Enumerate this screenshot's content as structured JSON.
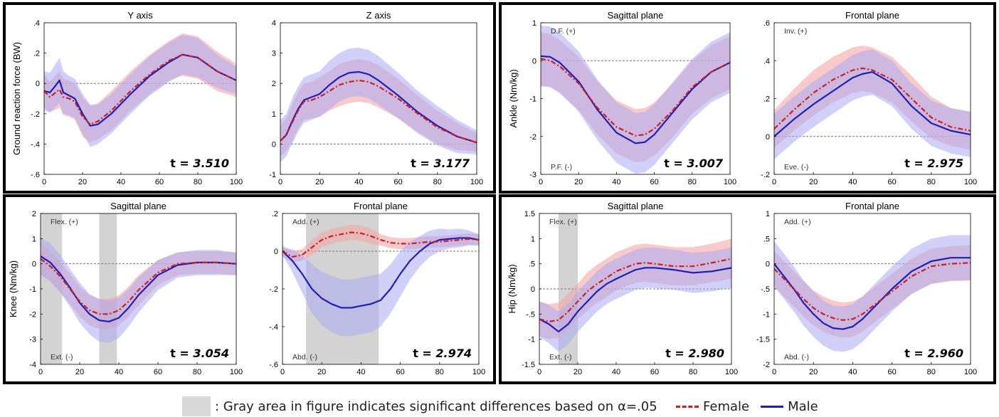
{
  "colors": {
    "female": "#cc1f1f",
    "male": "#1f1fb4",
    "female_band": "#f4a6a6",
    "male_band": "#aaaaf4",
    "sig_area": "#d3d3d3",
    "frame": "#000000"
  },
  "legend": {
    "sig_text": ": Gray area in figure indicates significant differences based on",
    "alpha_text": "α=.05",
    "female_label": "Female",
    "male_label": "Male"
  },
  "chart_data": [
    {
      "type": "line",
      "title": "Y axis",
      "ylabel": "Ground reaction force (BW)",
      "xlim": [
        0,
        100
      ],
      "ylim": [
        -0.6,
        0.4
      ],
      "xticks": [
        0,
        20,
        40,
        60,
        80,
        100
      ],
      "yticks": [
        -0.6,
        -0.4,
        -0.2,
        0,
        0.2,
        0.4
      ],
      "t_label": "t = ",
      "t_value": "3.510",
      "annotations": [],
      "significant_ranges": [],
      "x": [
        0,
        3,
        5,
        8,
        10,
        13,
        16,
        20,
        24,
        28,
        35,
        45,
        55,
        65,
        72,
        80,
        90,
        100
      ],
      "series": [
        {
          "name": "Female",
          "values": [
            -0.05,
            -0.09,
            -0.07,
            -0.04,
            -0.09,
            -0.1,
            -0.12,
            -0.22,
            -0.27,
            -0.25,
            -0.18,
            -0.05,
            0.06,
            0.15,
            0.19,
            0.17,
            0.08,
            0.02
          ],
          "sd": [
            0.11,
            0.1,
            0.11,
            0.12,
            0.12,
            0.12,
            0.12,
            0.13,
            0.12,
            0.12,
            0.13,
            0.13,
            0.13,
            0.13,
            0.14,
            0.14,
            0.13,
            0.11
          ]
        },
        {
          "name": "Male",
          "values": [
            -0.05,
            -0.06,
            -0.03,
            0.02,
            -0.06,
            -0.08,
            -0.1,
            -0.2,
            -0.28,
            -0.27,
            -0.2,
            -0.07,
            0.05,
            0.14,
            0.19,
            0.17,
            0.08,
            0.02
          ],
          "sd": [
            0.13,
            0.13,
            0.14,
            0.15,
            0.14,
            0.13,
            0.13,
            0.13,
            0.14,
            0.13,
            0.13,
            0.13,
            0.13,
            0.13,
            0.13,
            0.13,
            0.11,
            0.09
          ]
        }
      ]
    },
    {
      "type": "line",
      "title": "Z axis",
      "ylabel": "",
      "xlim": [
        0,
        100
      ],
      "ylim": [
        -1,
        4
      ],
      "xticks": [
        0,
        20,
        40,
        60,
        80,
        100
      ],
      "yticks": [
        -1,
        0,
        1,
        2,
        3,
        4
      ],
      "t_label": "t = ",
      "t_value": "3.177",
      "annotations": [],
      "significant_ranges": [],
      "x": [
        0,
        3,
        6,
        9,
        12,
        16,
        20,
        25,
        30,
        35,
        40,
        45,
        50,
        60,
        70,
        80,
        90,
        100
      ],
      "series": [
        {
          "name": "Female",
          "values": [
            0.1,
            0.3,
            0.7,
            1.1,
            1.4,
            1.45,
            1.55,
            1.75,
            1.95,
            2.05,
            2.1,
            2.05,
            1.9,
            1.5,
            1.0,
            0.55,
            0.25,
            0.05
          ],
          "sd": [
            0.5,
            0.55,
            0.6,
            0.6,
            0.6,
            0.6,
            0.65,
            0.65,
            0.7,
            0.7,
            0.7,
            0.7,
            0.7,
            0.65,
            0.6,
            0.55,
            0.45,
            0.3
          ]
        },
        {
          "name": "Male",
          "values": [
            0.1,
            0.3,
            0.75,
            1.15,
            1.45,
            1.55,
            1.65,
            1.95,
            2.2,
            2.35,
            2.38,
            2.3,
            2.1,
            1.6,
            1.05,
            0.6,
            0.25,
            0.05
          ],
          "sd": [
            0.7,
            0.7,
            0.75,
            0.75,
            0.75,
            0.75,
            0.75,
            0.8,
            0.8,
            0.8,
            0.8,
            0.8,
            0.8,
            0.75,
            0.7,
            0.65,
            0.55,
            0.4
          ]
        }
      ]
    },
    {
      "type": "line",
      "title": "Sagittal plane",
      "ylabel": "Ankle (Nm/kg)",
      "xlim": [
        0,
        100
      ],
      "ylim": [
        -3,
        1
      ],
      "xticks": [
        0,
        20,
        40,
        60,
        80,
        100
      ],
      "yticks": [
        -3,
        -2,
        -1,
        0,
        1
      ],
      "t_label": "t = ",
      "t_value": "3.007",
      "annotations": [
        {
          "text": "D.F. (+)",
          "pos": "top"
        },
        {
          "text": "P.F. (-)",
          "pos": "bottom"
        }
      ],
      "significant_ranges": [],
      "x": [
        0,
        5,
        10,
        20,
        30,
        40,
        50,
        55,
        60,
        70,
        80,
        90,
        100
      ],
      "series": [
        {
          "name": "Female",
          "values": [
            0.05,
            0.0,
            -0.15,
            -0.6,
            -1.25,
            -1.75,
            -1.98,
            -1.95,
            -1.8,
            -1.3,
            -0.7,
            -0.3,
            -0.05
          ],
          "sd": [
            0.7,
            0.7,
            0.7,
            0.7,
            0.7,
            0.7,
            0.7,
            0.7,
            0.7,
            0.7,
            0.7,
            0.7,
            0.7
          ]
        },
        {
          "name": "Male",
          "values": [
            0.12,
            0.1,
            -0.05,
            -0.55,
            -1.3,
            -1.9,
            -2.18,
            -2.15,
            -1.95,
            -1.35,
            -0.75,
            -0.3,
            -0.05
          ],
          "sd": [
            0.8,
            0.8,
            0.8,
            0.8,
            0.8,
            0.8,
            0.8,
            0.8,
            0.8,
            0.8,
            0.8,
            0.8,
            0.8
          ]
        }
      ]
    },
    {
      "type": "line",
      "title": "Frontal plane",
      "ylabel": "",
      "xlim": [
        0,
        100
      ],
      "ylim": [
        -0.2,
        0.6
      ],
      "xticks": [
        0,
        20,
        40,
        60,
        80,
        100
      ],
      "yticks": [
        -0.2,
        0,
        0.2,
        0.4,
        0.6
      ],
      "t_label": "t = ",
      "t_value": "2.975",
      "annotations": [
        {
          "text": "Inv. (+)",
          "pos": "top"
        },
        {
          "text": "Eve. (-)",
          "pos": "bottom"
        }
      ],
      "significant_ranges": [],
      "x": [
        0,
        10,
        20,
        30,
        40,
        45,
        50,
        60,
        70,
        80,
        90,
        100
      ],
      "series": [
        {
          "name": "Female",
          "values": [
            0.04,
            0.14,
            0.23,
            0.3,
            0.35,
            0.36,
            0.35,
            0.3,
            0.2,
            0.1,
            0.05,
            0.03
          ],
          "sd": [
            0.1,
            0.11,
            0.12,
            0.12,
            0.12,
            0.12,
            0.12,
            0.12,
            0.12,
            0.11,
            0.1,
            0.1
          ]
        },
        {
          "name": "Male",
          "values": [
            0.0,
            0.09,
            0.17,
            0.24,
            0.31,
            0.33,
            0.34,
            0.28,
            0.16,
            0.07,
            0.03,
            0.01
          ],
          "sd": [
            0.12,
            0.12,
            0.12,
            0.12,
            0.12,
            0.12,
            0.12,
            0.12,
            0.12,
            0.12,
            0.12,
            0.12
          ]
        }
      ]
    },
    {
      "type": "line",
      "title": "Sagittal plane",
      "ylabel": "Knee (Nm/kg)",
      "xlim": [
        0,
        100
      ],
      "ylim": [
        -4,
        2
      ],
      "xticks": [
        0,
        20,
        40,
        60,
        80,
        100
      ],
      "yticks": [
        -4,
        -3,
        -2,
        -1,
        0,
        1,
        2
      ],
      "t_label": "t = ",
      "t_value": "3.054",
      "annotations": [
        {
          "text": "Flex. (+)",
          "pos": "top"
        },
        {
          "text": "Ext. (-)",
          "pos": "bottom"
        }
      ],
      "significant_ranges": [
        [
          0,
          11
        ],
        [
          30,
          39
        ]
      ],
      "x": [
        0,
        5,
        10,
        15,
        20,
        25,
        30,
        35,
        40,
        45,
        50,
        60,
        70,
        80,
        90,
        100
      ],
      "series": [
        {
          "name": "Female",
          "values": [
            0.2,
            -0.1,
            -0.5,
            -1.0,
            -1.5,
            -1.85,
            -2.0,
            -2.0,
            -1.85,
            -1.5,
            -1.05,
            -0.35,
            0.0,
            0.05,
            0.05,
            0.0
          ],
          "sd": [
            0.6,
            0.6,
            0.6,
            0.6,
            0.6,
            0.6,
            0.6,
            0.6,
            0.6,
            0.6,
            0.6,
            0.5,
            0.45,
            0.45,
            0.45,
            0.45
          ]
        },
        {
          "name": "Male",
          "values": [
            0.3,
            0.05,
            -0.4,
            -0.95,
            -1.55,
            -2.0,
            -2.25,
            -2.3,
            -2.15,
            -1.75,
            -1.25,
            -0.45,
            -0.05,
            0.05,
            0.05,
            0.0
          ],
          "sd": [
            0.75,
            0.75,
            0.75,
            0.75,
            0.8,
            0.8,
            0.85,
            0.85,
            0.8,
            0.75,
            0.7,
            0.6,
            0.5,
            0.5,
            0.5,
            0.45
          ]
        }
      ]
    },
    {
      "type": "line",
      "title": "Frontal plane",
      "ylabel": "",
      "xlim": [
        0,
        100
      ],
      "ylim": [
        -0.6,
        0.2
      ],
      "xticks": [
        0,
        20,
        40,
        60,
        80,
        100
      ],
      "yticks": [
        -0.6,
        -0.4,
        -0.2,
        0,
        0.2
      ],
      "t_label": "t = ",
      "t_value": "2.974",
      "annotations": [
        {
          "text": "Add. (+)",
          "pos": "top"
        },
        {
          "text": "Abd. (-)",
          "pos": "bottom"
        }
      ],
      "significant_ranges": [
        [
          12,
          49
        ]
      ],
      "x": [
        0,
        5,
        10,
        15,
        20,
        25,
        30,
        35,
        40,
        45,
        50,
        55,
        60,
        65,
        70,
        75,
        80,
        85,
        90,
        95,
        100
      ],
      "series": [
        {
          "name": "Female",
          "values": [
            0.0,
            -0.03,
            -0.02,
            0.02,
            0.06,
            0.08,
            0.09,
            0.1,
            0.095,
            0.08,
            0.06,
            0.045,
            0.04,
            0.04,
            0.045,
            0.05,
            0.05,
            0.055,
            0.06,
            0.065,
            0.06
          ],
          "sd": [
            0.03,
            0.03,
            0.03,
            0.04,
            0.04,
            0.04,
            0.04,
            0.04,
            0.04,
            0.04,
            0.03,
            0.03,
            0.03,
            0.03,
            0.03,
            0.03,
            0.03,
            0.03,
            0.03,
            0.03,
            0.03
          ]
        },
        {
          "name": "Male",
          "values": [
            0.0,
            -0.05,
            -0.12,
            -0.2,
            -0.25,
            -0.28,
            -0.3,
            -0.3,
            -0.29,
            -0.28,
            -0.26,
            -0.2,
            -0.12,
            -0.05,
            0.0,
            0.04,
            0.06,
            0.065,
            0.07,
            0.07,
            0.06
          ],
          "sd": [
            0.02,
            0.06,
            0.1,
            0.13,
            0.14,
            0.15,
            0.15,
            0.15,
            0.15,
            0.15,
            0.14,
            0.13,
            0.12,
            0.1,
            0.08,
            0.07,
            0.06,
            0.05,
            0.05,
            0.04,
            0.03
          ]
        }
      ]
    },
    {
      "type": "line",
      "title": "Sagittal plane",
      "ylabel": "Hip (Nm/kg)",
      "xlim": [
        0,
        100
      ],
      "ylim": [
        -1.5,
        1.5
      ],
      "xticks": [
        0,
        20,
        40,
        60,
        80,
        100
      ],
      "yticks": [
        -1.5,
        -1,
        -0.5,
        0,
        0.5,
        1,
        1.5
      ],
      "t_label": "t = ",
      "t_value": "2.980",
      "annotations": [
        {
          "text": "Flex. (+)",
          "pos": "top"
        },
        {
          "text": "Ext. (-)",
          "pos": "bottom"
        }
      ],
      "significant_ranges": [
        [
          10,
          20
        ]
      ],
      "x": [
        0,
        5,
        10,
        15,
        20,
        25,
        30,
        35,
        40,
        50,
        55,
        60,
        70,
        80,
        90,
        100
      ],
      "series": [
        {
          "name": "Female",
          "values": [
            -0.6,
            -0.65,
            -0.62,
            -0.45,
            -0.25,
            -0.05,
            0.1,
            0.22,
            0.35,
            0.5,
            0.52,
            0.5,
            0.45,
            0.45,
            0.52,
            0.6
          ],
          "sd": [
            0.35,
            0.35,
            0.35,
            0.35,
            0.35,
            0.38,
            0.38,
            0.38,
            0.38,
            0.38,
            0.38,
            0.38,
            0.38,
            0.38,
            0.38,
            0.4
          ]
        },
        {
          "name": "Male",
          "values": [
            -0.6,
            -0.7,
            -0.85,
            -0.7,
            -0.45,
            -0.25,
            -0.05,
            0.1,
            0.2,
            0.38,
            0.42,
            0.42,
            0.38,
            0.32,
            0.35,
            0.42
          ],
          "sd": [
            0.35,
            0.38,
            0.4,
            0.4,
            0.4,
            0.4,
            0.4,
            0.4,
            0.4,
            0.4,
            0.4,
            0.4,
            0.4,
            0.4,
            0.4,
            0.4
          ]
        }
      ]
    },
    {
      "type": "line",
      "title": "Frontal plane",
      "ylabel": "",
      "xlim": [
        0,
        100
      ],
      "ylim": [
        -2,
        1
      ],
      "xticks": [
        0,
        20,
        40,
        60,
        80,
        100
      ],
      "yticks": [
        -2,
        -1.5,
        -1,
        -0.5,
        0,
        0.5,
        1
      ],
      "t_label": "t = ",
      "t_value": "2.960",
      "annotations": [
        {
          "text": "Add. (+)",
          "pos": "top"
        },
        {
          "text": "Abd. (-)",
          "pos": "bottom"
        }
      ],
      "significant_ranges": [],
      "x": [
        0,
        5,
        10,
        15,
        20,
        25,
        30,
        35,
        40,
        45,
        50,
        60,
        70,
        80,
        90,
        100
      ],
      "series": [
        {
          "name": "Female",
          "values": [
            -0.1,
            -0.3,
            -0.5,
            -0.7,
            -0.88,
            -1.0,
            -1.08,
            -1.12,
            -1.1,
            -1.0,
            -0.85,
            -0.55,
            -0.25,
            -0.05,
            0.0,
            0.02
          ],
          "sd": [
            0.35,
            0.35,
            0.35,
            0.35,
            0.35,
            0.35,
            0.35,
            0.35,
            0.35,
            0.35,
            0.35,
            0.35,
            0.35,
            0.35,
            0.35,
            0.35
          ]
        },
        {
          "name": "Male",
          "values": [
            0.0,
            -0.25,
            -0.5,
            -0.78,
            -1.0,
            -1.18,
            -1.28,
            -1.3,
            -1.25,
            -1.1,
            -0.9,
            -0.5,
            -0.15,
            0.05,
            0.12,
            0.12
          ],
          "sd": [
            0.45,
            0.45,
            0.45,
            0.45,
            0.45,
            0.45,
            0.45,
            0.45,
            0.45,
            0.45,
            0.45,
            0.45,
            0.45,
            0.45,
            0.45,
            0.45
          ]
        }
      ]
    }
  ]
}
